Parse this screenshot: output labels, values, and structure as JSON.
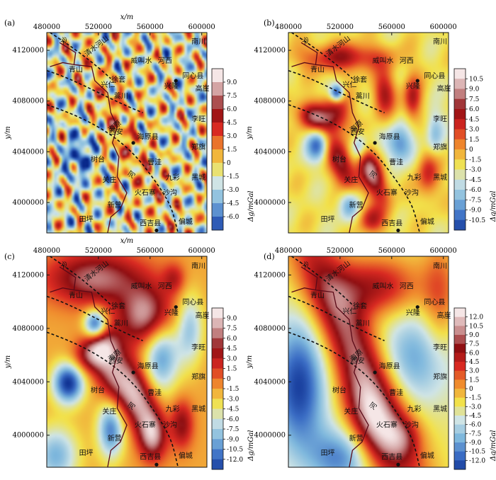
{
  "chart_data": [
    {
      "type": "heatmap",
      "panel_label": "(a)",
      "x_axis": {
        "label": "x/m",
        "ticks": [
          "480000",
          "520000",
          "560000",
          "600000"
        ],
        "range": [
          480000,
          604000
        ]
      },
      "y_axis": {
        "label": "y/m",
        "ticks": [
          "4120000",
          "4080000",
          "4040000",
          "4000000"
        ],
        "range": [
          3976000,
          4134000
        ]
      },
      "colorbar": {
        "unit": "Δg/mGal",
        "ticks": [
          "9.0",
          "7.5",
          "6.0",
          "4.5",
          "3.0",
          "1.5",
          "0",
          "-1.5",
          "-3.0",
          "-4.5",
          "-6.0"
        ],
        "range": [
          -7.0,
          10.0
        ]
      },
      "field_style": "fine",
      "places": [
        {
          "name": "南川",
          "x": 592000,
          "y": 4125000
        },
        {
          "name": "青山",
          "x": 497000,
          "y": 4103000
        },
        {
          "name": "威叫水",
          "x": 545000,
          "y": 4110000
        },
        {
          "name": "河西",
          "x": 566000,
          "y": 4110000
        },
        {
          "name": "同心县",
          "x": 585000,
          "y": 4098000
        },
        {
          "name": "徐套",
          "x": 530000,
          "y": 4095000
        },
        {
          "name": "兴仁",
          "x": 522000,
          "y": 4091000
        },
        {
          "name": "兴隆",
          "x": 571000,
          "y": 4090000
        },
        {
          "name": "高崖",
          "x": 595000,
          "y": 4088000
        },
        {
          "name": "蒿川",
          "x": 532000,
          "y": 4082000
        },
        {
          "name": "李旺",
          "x": 592000,
          "y": 4064000
        },
        {
          "name": "西安",
          "x": 528000,
          "y": 4054000
        },
        {
          "name": "海原县",
          "x": 550000,
          "y": 4050000
        },
        {
          "name": "郑旗",
          "x": 592000,
          "y": 4042000
        },
        {
          "name": "树台",
          "x": 514000,
          "y": 4032000
        },
        {
          "name": "曹洼",
          "x": 558000,
          "y": 4030000
        },
        {
          "name": "九彩",
          "x": 572000,
          "y": 4018000
        },
        {
          "name": "黑城",
          "x": 592000,
          "y": 4018000
        },
        {
          "name": "关庄",
          "x": 523000,
          "y": 4016000
        },
        {
          "name": "火石寨",
          "x": 548000,
          "y": 4006000
        },
        {
          "name": "沙沟",
          "x": 570000,
          "y": 4006000
        },
        {
          "name": "新营",
          "x": 527000,
          "y": 3996000
        },
        {
          "name": "田坪",
          "x": 505000,
          "y": 3985000
        },
        {
          "name": "西吉县",
          "x": 552000,
          "y": 3982000
        },
        {
          "name": "偏城",
          "x": 582000,
          "y": 3983000
        }
      ],
      "county_seats": [
        {
          "name": "同心县",
          "x": 580000,
          "y": 4096000
        },
        {
          "name": "海原县",
          "x": 547000,
          "y": 4047000
        },
        {
          "name": "西吉县",
          "x": 565000,
          "y": 3978000
        }
      ],
      "fault_labels": [
        "沙",
        "清水河山",
        "海原",
        "河"
      ],
      "colors": {
        "scale": [
          "#0a2a8c",
          "#3a6cc4",
          "#7fb8dd",
          "#cfe4e6",
          "#f2e14a",
          "#f08c2e",
          "#d92a22",
          "#8f0f12",
          "#c98f8f",
          "#f5e6e6"
        ],
        "faults": "#111111",
        "border": "#5a0a18"
      }
    },
    {
      "type": "heatmap",
      "panel_label": "(b)",
      "x_axis": {
        "label": "",
        "ticks": [
          "480000",
          "520000",
          "560000",
          "600000"
        ],
        "range": [
          480000,
          604000
        ]
      },
      "y_axis": {
        "label": "y/m",
        "ticks": [
          "4120000",
          "4080000",
          "4040000",
          "4000000"
        ],
        "range": [
          3976000,
          4134000
        ]
      },
      "colorbar": {
        "unit": "Δg/mGal",
        "ticks": [
          "10.5",
          "9.0",
          "7.5",
          "6.0",
          "4.5",
          "3.0",
          "1.5",
          "0",
          "-1.5",
          "-3.0",
          "-4.5",
          "-6.0",
          "-7.5",
          "-9.0",
          "-10.5"
        ],
        "range": [
          -11.5,
          11.5
        ]
      },
      "field_style": "medium",
      "places": [
        {
          "name": "南川",
          "x": 592000,
          "y": 4125000
        },
        {
          "name": "青山",
          "x": 497000,
          "y": 4103000
        },
        {
          "name": "威叫水",
          "x": 545000,
          "y": 4110000
        },
        {
          "name": "河西",
          "x": 566000,
          "y": 4110000
        },
        {
          "name": "同心县",
          "x": 585000,
          "y": 4098000
        },
        {
          "name": "徐套",
          "x": 530000,
          "y": 4095000
        },
        {
          "name": "兴仁",
          "x": 522000,
          "y": 4091000
        },
        {
          "name": "兴隆",
          "x": 571000,
          "y": 4090000
        },
        {
          "name": "高崖",
          "x": 595000,
          "y": 4088000
        },
        {
          "name": "蒿川",
          "x": 532000,
          "y": 4082000
        },
        {
          "name": "李旺",
          "x": 592000,
          "y": 4064000
        },
        {
          "name": "西安",
          "x": 528000,
          "y": 4054000
        },
        {
          "name": "海原县",
          "x": 550000,
          "y": 4050000
        },
        {
          "name": "郑旗",
          "x": 592000,
          "y": 4042000
        },
        {
          "name": "树台",
          "x": 514000,
          "y": 4032000
        },
        {
          "name": "曹洼",
          "x": 558000,
          "y": 4030000
        },
        {
          "name": "九彩",
          "x": 572000,
          "y": 4018000
        },
        {
          "name": "黑城",
          "x": 592000,
          "y": 4018000
        },
        {
          "name": "关庄",
          "x": 523000,
          "y": 4016000
        },
        {
          "name": "火石寨",
          "x": 548000,
          "y": 4006000
        },
        {
          "name": "沙沟",
          "x": 570000,
          "y": 4006000
        },
        {
          "name": "新营",
          "x": 527000,
          "y": 3996000
        },
        {
          "name": "田坪",
          "x": 505000,
          "y": 3985000
        },
        {
          "name": "西吉县",
          "x": 552000,
          "y": 3982000
        },
        {
          "name": "偏城",
          "x": 582000,
          "y": 3983000
        }
      ],
      "county_seats": [
        {
          "name": "同心县",
          "x": 580000,
          "y": 4096000
        },
        {
          "name": "海原县",
          "x": 547000,
          "y": 4047000
        },
        {
          "name": "西吉县",
          "x": 565000,
          "y": 3978000
        }
      ],
      "fault_labels": [
        "沙",
        "清水河山",
        "海原",
        "河"
      ],
      "colors": {
        "scale": [
          "#0a2a8c",
          "#3a6cc4",
          "#7fb8dd",
          "#cfe4e6",
          "#f2e14a",
          "#f08c2e",
          "#d92a22",
          "#8f0f12",
          "#c98f8f",
          "#f5e6e6"
        ],
        "faults": "#111111",
        "border": "#5a0a18"
      }
    },
    {
      "type": "heatmap",
      "panel_label": "(c)",
      "x_axis": {
        "label": "x/m",
        "ticks": [
          "480000",
          "520000",
          "560000",
          "600000"
        ],
        "range": [
          480000,
          604000
        ]
      },
      "y_axis": {
        "label": "y/m",
        "ticks": [
          "4120000",
          "4080000",
          "4040000",
          "4000000"
        ],
        "range": [
          3976000,
          4134000
        ]
      },
      "colorbar": {
        "unit": "Δg/mGal",
        "ticks": [
          "9.0",
          "7.5",
          "6.0",
          "4.5",
          "3.0",
          "1.5",
          "0",
          "-1.5",
          "-3.0",
          "-4.5",
          "-6.0",
          "-7.5",
          "-9.0",
          "-10.5",
          "-12.0"
        ],
        "range": [
          -13.0,
          10.0
        ]
      },
      "field_style": "smooth",
      "places": [
        {
          "name": "南川",
          "x": 592000,
          "y": 4125000
        },
        {
          "name": "青山",
          "x": 497000,
          "y": 4103000
        },
        {
          "name": "威叫水",
          "x": 545000,
          "y": 4110000
        },
        {
          "name": "河西",
          "x": 566000,
          "y": 4110000
        },
        {
          "name": "同心县",
          "x": 585000,
          "y": 4098000
        },
        {
          "name": "徐套",
          "x": 530000,
          "y": 4095000
        },
        {
          "name": "兴仁",
          "x": 522000,
          "y": 4091000
        },
        {
          "name": "兴隆",
          "x": 571000,
          "y": 4090000
        },
        {
          "name": "高崖",
          "x": 595000,
          "y": 4088000
        },
        {
          "name": "蒿川",
          "x": 532000,
          "y": 4082000
        },
        {
          "name": "李旺",
          "x": 592000,
          "y": 4064000
        },
        {
          "name": "西安",
          "x": 528000,
          "y": 4054000
        },
        {
          "name": "海原县",
          "x": 550000,
          "y": 4050000
        },
        {
          "name": "郑旗",
          "x": 592000,
          "y": 4042000
        },
        {
          "name": "树台",
          "x": 514000,
          "y": 4032000
        },
        {
          "name": "曹洼",
          "x": 558000,
          "y": 4030000
        },
        {
          "name": "九彩",
          "x": 572000,
          "y": 4018000
        },
        {
          "name": "黑城",
          "x": 592000,
          "y": 4018000
        },
        {
          "name": "关庄",
          "x": 523000,
          "y": 4016000
        },
        {
          "name": "火石寨",
          "x": 548000,
          "y": 4006000
        },
        {
          "name": "沙沟",
          "x": 570000,
          "y": 4006000
        },
        {
          "name": "新营",
          "x": 527000,
          "y": 3996000
        },
        {
          "name": "田坪",
          "x": 505000,
          "y": 3985000
        },
        {
          "name": "西吉县",
          "x": 552000,
          "y": 3982000
        },
        {
          "name": "偏城",
          "x": 582000,
          "y": 3983000
        }
      ],
      "county_seats": [
        {
          "name": "同心县",
          "x": 580000,
          "y": 4096000
        },
        {
          "name": "海原县",
          "x": 547000,
          "y": 4047000
        },
        {
          "name": "西吉县",
          "x": 565000,
          "y": 3978000
        }
      ],
      "fault_labels": [
        "沙",
        "清水河山",
        "海原",
        "河"
      ],
      "colors": {
        "scale": [
          "#0a2a8c",
          "#3a6cc4",
          "#7fb8dd",
          "#cfe4e6",
          "#f2e14a",
          "#f08c2e",
          "#d92a22",
          "#8f0f12",
          "#c98f8f",
          "#f5e6e6"
        ],
        "faults": "#111111",
        "border": "#5a0a18"
      }
    },
    {
      "type": "heatmap",
      "panel_label": "(d)",
      "x_axis": {
        "label": "",
        "ticks": [
          "480000",
          "520000",
          "560000",
          "600000"
        ],
        "range": [
          480000,
          604000
        ]
      },
      "y_axis": {
        "label": "y/m",
        "ticks": [
          "4120000",
          "4080000",
          "4040000",
          "4000000"
        ],
        "range": [
          3976000,
          4134000
        ]
      },
      "colorbar": {
        "unit": "Δg/mGal",
        "ticks": [
          "12.0",
          "10.5",
          "9.0",
          "7.5",
          "6.0",
          "4.5",
          "3.0",
          "1.5",
          "0",
          "-1.5",
          "-3.0",
          "-4.5",
          "-6.0",
          "-7.5",
          "-9.0",
          "-10.5",
          "-12.0"
        ],
        "range": [
          -13.0,
          13.0
        ]
      },
      "field_style": "broad",
      "places": [
        {
          "name": "南川",
          "x": 592000,
          "y": 4125000
        },
        {
          "name": "青山",
          "x": 497000,
          "y": 4103000
        },
        {
          "name": "威叫水",
          "x": 545000,
          "y": 4110000
        },
        {
          "name": "河西",
          "x": 566000,
          "y": 4110000
        },
        {
          "name": "同心县",
          "x": 585000,
          "y": 4098000
        },
        {
          "name": "徐套",
          "x": 530000,
          "y": 4095000
        },
        {
          "name": "兴仁",
          "x": 522000,
          "y": 4091000
        },
        {
          "name": "兴隆",
          "x": 571000,
          "y": 4090000
        },
        {
          "name": "高崖",
          "x": 595000,
          "y": 4088000
        },
        {
          "name": "蒿川",
          "x": 532000,
          "y": 4082000
        },
        {
          "name": "李旺",
          "x": 592000,
          "y": 4064000
        },
        {
          "name": "西安",
          "x": 528000,
          "y": 4054000
        },
        {
          "name": "海原县",
          "x": 550000,
          "y": 4050000
        },
        {
          "name": "郑旗",
          "x": 592000,
          "y": 4042000
        },
        {
          "name": "树台",
          "x": 514000,
          "y": 4032000
        },
        {
          "name": "曹洼",
          "x": 558000,
          "y": 4030000
        },
        {
          "name": "九彩",
          "x": 572000,
          "y": 4018000
        },
        {
          "name": "黑城",
          "x": 592000,
          "y": 4018000
        },
        {
          "name": "关庄",
          "x": 523000,
          "y": 4016000
        },
        {
          "name": "火石寨",
          "x": 548000,
          "y": 4006000
        },
        {
          "name": "沙沟",
          "x": 570000,
          "y": 4006000
        },
        {
          "name": "新营",
          "x": 527000,
          "y": 3996000
        },
        {
          "name": "田坪",
          "x": 505000,
          "y": 3985000
        },
        {
          "name": "西吉县",
          "x": 552000,
          "y": 3982000
        },
        {
          "name": "偏城",
          "x": 582000,
          "y": 3983000
        }
      ],
      "county_seats": [
        {
          "name": "同心县",
          "x": 580000,
          "y": 4096000
        },
        {
          "name": "海原县",
          "x": 547000,
          "y": 4047000
        },
        {
          "name": "西吉县",
          "x": 565000,
          "y": 3978000
        }
      ],
      "fault_labels": [
        "沙",
        "清水河山",
        "海原",
        "河"
      ],
      "colors": {
        "scale": [
          "#0a2a8c",
          "#3a6cc4",
          "#7fb8dd",
          "#cfe4e6",
          "#f2e14a",
          "#f08c2e",
          "#d92a22",
          "#8f0f12",
          "#c98f8f",
          "#f5e6e6"
        ],
        "faults": "#111111",
        "border": "#5a0a18"
      }
    }
  ]
}
